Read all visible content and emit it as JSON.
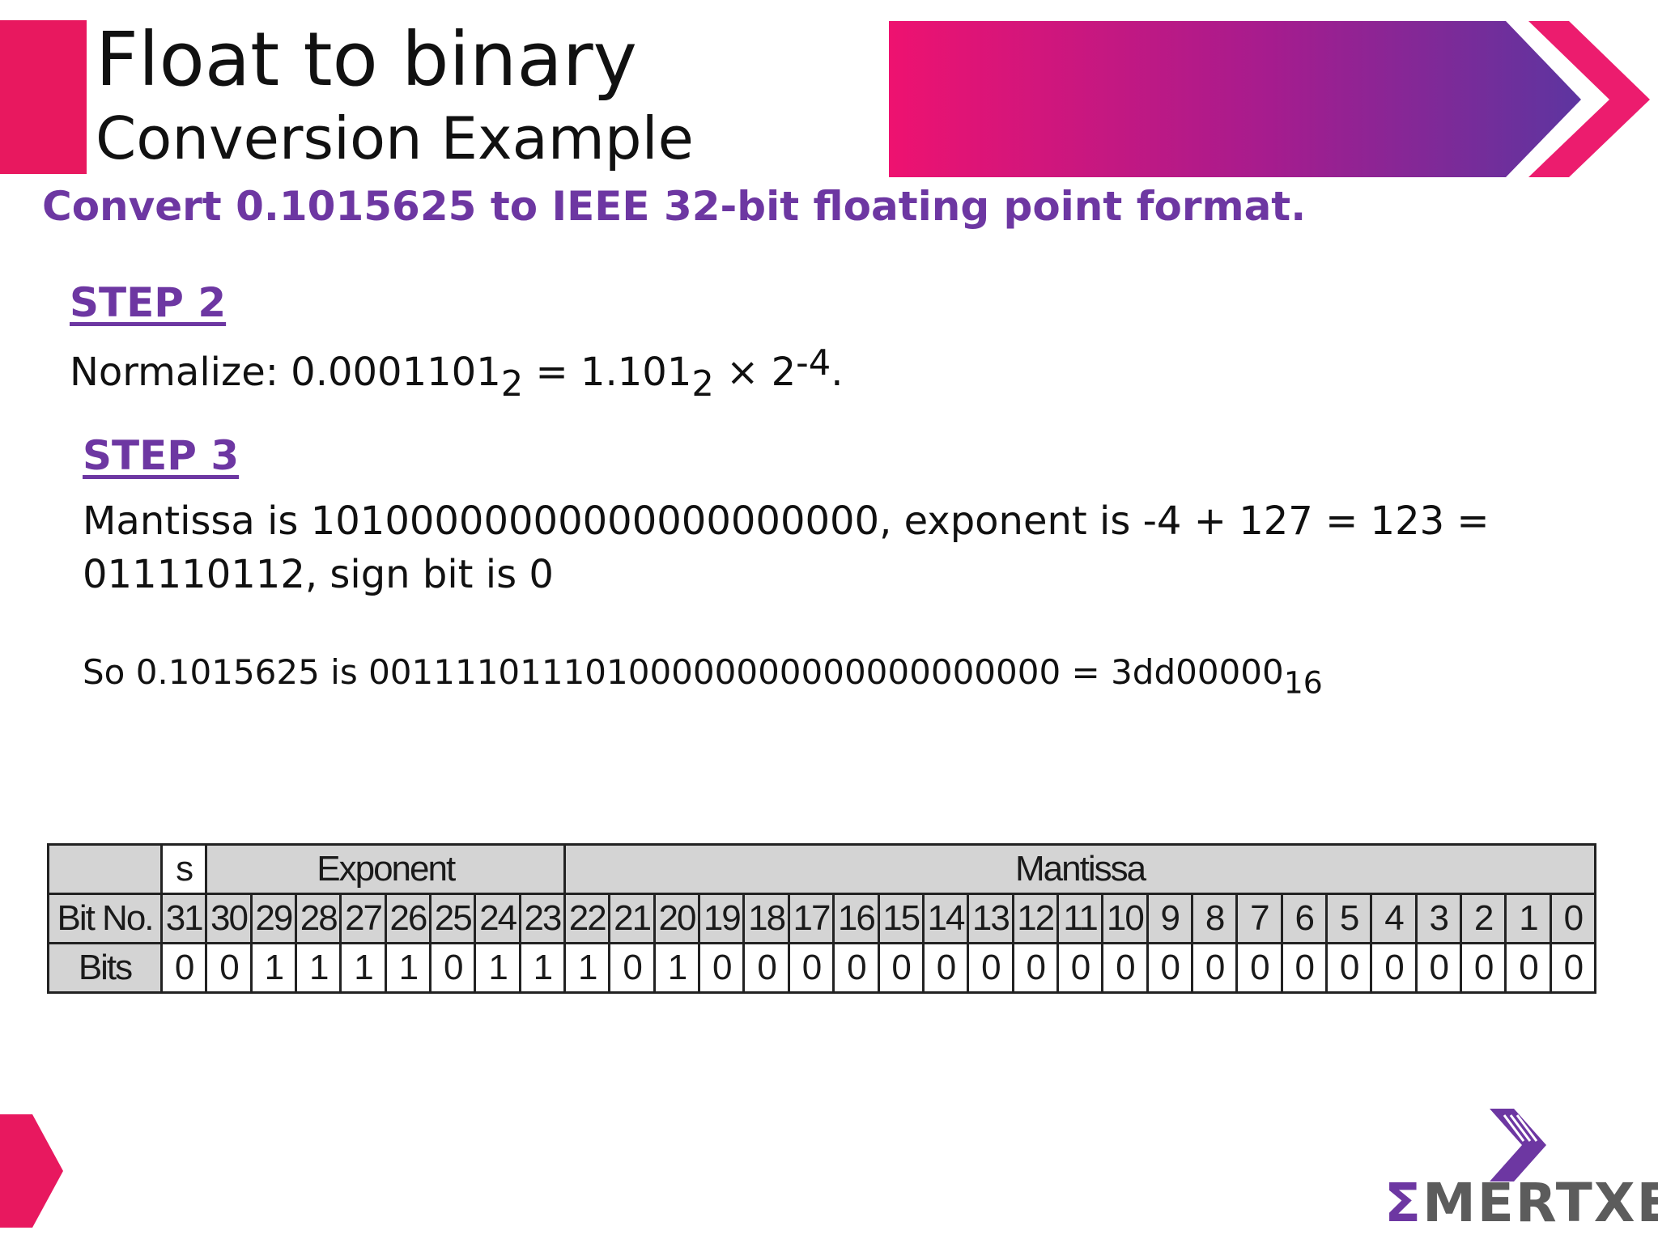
{
  "header": {
    "title": "Float to binary",
    "subtitle": "Conversion Example"
  },
  "task": "Convert 0.1015625 to IEEE 32-bit floating point format.",
  "step2": {
    "heading": "STEP 2",
    "text_a": "Normalize: 0.0001101",
    "sub_a": "2",
    "text_b": " = 1.101",
    "sub_b": "2",
    "text_c": " × 2",
    "sup_c": "-4",
    "text_d": "."
  },
  "step3": {
    "heading": "STEP 3",
    "line1": "Mantissa is 10100000000000000000000, exponent is -4 + 127 = 123 =",
    "line2": "011110112, sign bit is 0"
  },
  "result": {
    "text": "So 0.1015625 is 00111101110100000000000000000000 = 3dd00000",
    "sub": "16"
  },
  "table": {
    "header_s": "s",
    "header_exponent": "Exponent",
    "header_mantissa": "Mantissa",
    "row_bitno_label": "Bit No.",
    "row_bits_label": "Bits",
    "bit_numbers": [
      "31",
      "30",
      "29",
      "28",
      "27",
      "26",
      "25",
      "24",
      "23",
      "22",
      "21",
      "20",
      "19",
      "18",
      "17",
      "16",
      "15",
      "14",
      "13",
      "12",
      "11",
      "10",
      "9",
      "8",
      "7",
      "6",
      "5",
      "4",
      "3",
      "2",
      "1",
      "0"
    ],
    "bits": [
      "0",
      "0",
      "1",
      "1",
      "1",
      "1",
      "0",
      "1",
      "1",
      "1",
      "0",
      "1",
      "0",
      "0",
      "0",
      "0",
      "0",
      "0",
      "0",
      "0",
      "0",
      "0",
      "0",
      "0",
      "0",
      "0",
      "0",
      "0",
      "0",
      "0",
      "0",
      "0"
    ]
  },
  "logo": {
    "sigma": "Σ",
    "rest": "MERTXE"
  },
  "colors": {
    "accent_pink": "#e8185f",
    "accent_purple": "#6d37a2",
    "table_gray": "#d4d4d4"
  }
}
